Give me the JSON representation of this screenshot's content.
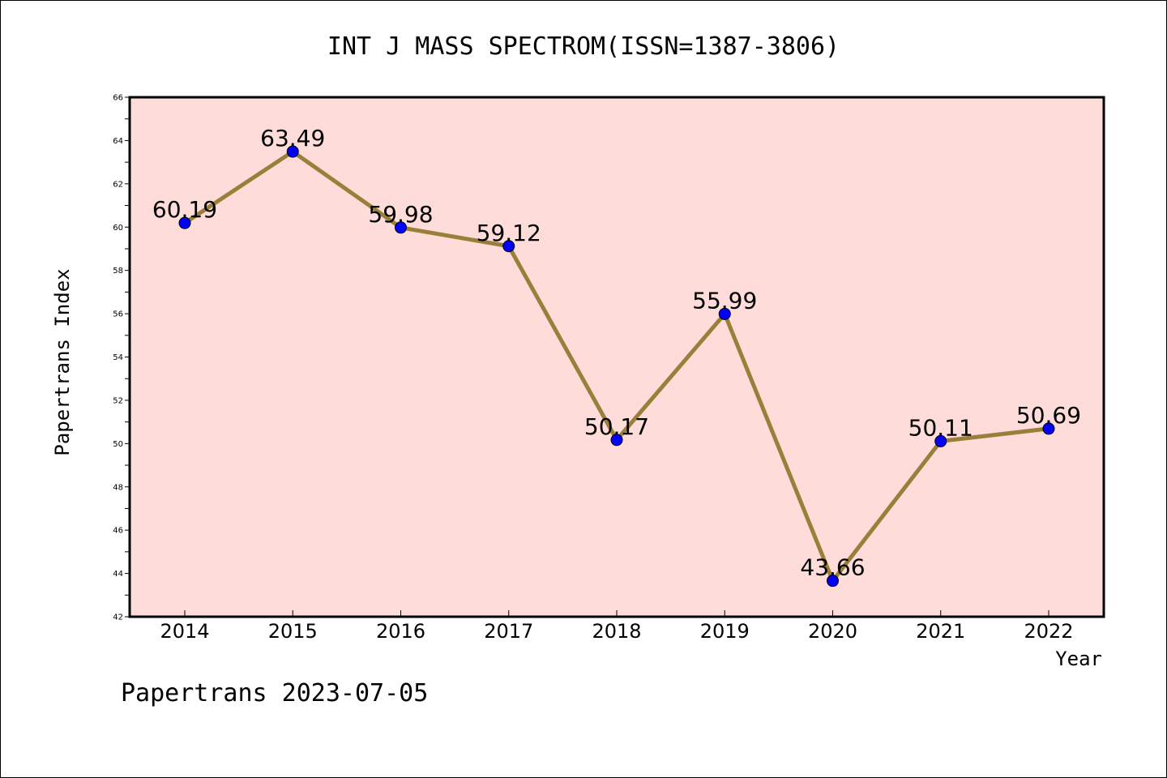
{
  "colors": {
    "plot_background": "#fddcd9",
    "line": "#9a7f3a",
    "marker": "#0000ff",
    "axis": "#000000"
  },
  "chart_data": {
    "type": "line",
    "title": "INT J MASS SPECTROM(ISSN=1387-3806)",
    "xlabel": "Year",
    "ylabel": "Papertrans Index",
    "footer": "Papertrans 2023-07-05",
    "categories": [
      "2014",
      "2015",
      "2016",
      "2017",
      "2018",
      "2019",
      "2020",
      "2021",
      "2022"
    ],
    "series": [
      {
        "values": [
          60.19,
          63.49,
          59.98,
          59.12,
          50.17,
          55.99,
          43.66,
          50.11,
          50.69
        ],
        "value_labels": [
          "60.19",
          "63.49",
          "59.98",
          "59.12",
          "50.17",
          "55.99",
          "43.66",
          "50.11",
          "50.69"
        ]
      }
    ],
    "ylim": [
      42,
      66
    ],
    "yticks": [
      "42",
      "44",
      "46",
      "48",
      "50",
      "52",
      "54",
      "56",
      "58",
      "60",
      "62",
      "64",
      "66"
    ],
    "grid": false,
    "legend": "none"
  }
}
